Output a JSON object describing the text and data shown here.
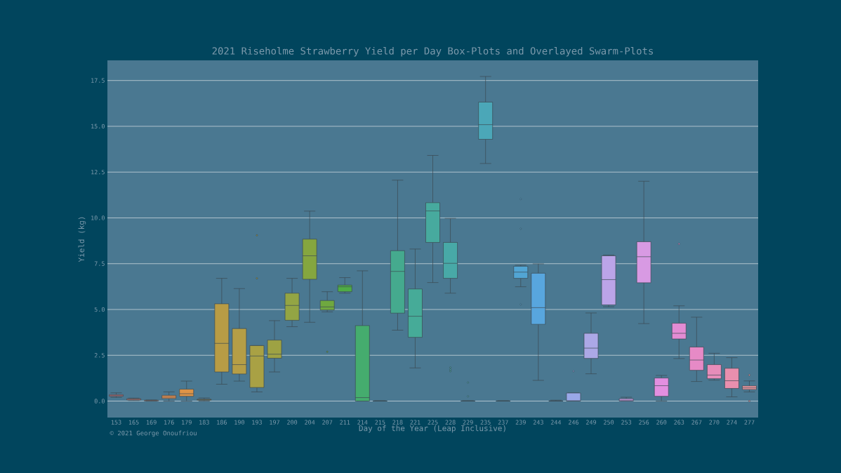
{
  "chart_data": {
    "type": "box",
    "title": "2021 Riseholme Strawberry Yield per Day Box-Plots and Overlayed Swarm-Plots",
    "xlabel": "Day of the Year (Leap Inclusive)",
    "ylabel": "Yield (kg)",
    "annotations": [
      "© 2021 George Onoufriou"
    ],
    "categories": [
      "153",
      "165",
      "169",
      "176",
      "179",
      "183",
      "186",
      "190",
      "193",
      "197",
      "200",
      "204",
      "207",
      "211",
      "214",
      "215",
      "218",
      "221",
      "225",
      "228",
      "229",
      "235",
      "237",
      "239",
      "243",
      "244",
      "246",
      "249",
      "250",
      "253",
      "256",
      "260",
      "263",
      "267",
      "270",
      "274",
      "277"
    ],
    "colors": [
      "#e8797c",
      "#e98577",
      "#e88a6a",
      "#e8904d",
      "#dd9447",
      "#c89b3f",
      "#b89c45",
      "#b59e46",
      "#a9a144",
      "#9ea243",
      "#93a544",
      "#85a63f",
      "#6fa83f",
      "#4fac45",
      "#45ac6e",
      "#45ab84",
      "#45aa8e",
      "#46ab98",
      "#47aa9e",
      "#48a9a7",
      "#4aa8b0",
      "#4ba7b8",
      "#4da6c2",
      "#52a5d4",
      "#58a6de",
      "#6fa4e6",
      "#99a8e8",
      "#aca8e6",
      "#bba4e8",
      "#cd9de5",
      "#d89ae3",
      "#e28fe0",
      "#e48cd4",
      "#e68ac6",
      "#e78dba",
      "#e98fae",
      "#e9979f"
    ],
    "boxes": [
      {
        "low": 0.2,
        "q1": 0.26,
        "median": 0.3,
        "q3": 0.35,
        "high": 0.45
      },
      {
        "low": 0.03,
        "q1": 0.06,
        "median": 0.1,
        "q3": 0.13,
        "high": 0.16
      },
      {
        "low": 0,
        "q1": 0.01,
        "median": 0.03,
        "q3": 0.05,
        "high": 0.06
      },
      {
        "low": 0,
        "q1": 0.14,
        "median": 0.22,
        "q3": 0.31,
        "high": 0.5
      },
      {
        "low": 0,
        "q1": 0.26,
        "median": 0.4,
        "q3": 0.65,
        "high": 1.09
      },
      {
        "low": 0,
        "q1": 0.05,
        "median": 0.08,
        "q3": 0.1,
        "high": 0.17
      },
      {
        "low": 0.92,
        "q1": 1.59,
        "median": 3.15,
        "q3": 5.31,
        "high": 6.7
      },
      {
        "low": 1.09,
        "q1": 1.48,
        "median": 1.99,
        "q3": 3.96,
        "high": 6.14
      },
      {
        "low": 0.5,
        "q1": 0.74,
        "median": 2.46,
        "q3": 3.03,
        "high": 3.03,
        "outliers": [
          9.05,
          6.7
        ]
      },
      {
        "low": 1.59,
        "q1": 2.34,
        "median": 2.56,
        "q3": 3.33,
        "high": 4.39
      },
      {
        "low": 4.06,
        "q1": 4.41,
        "median": 5.22,
        "q3": 5.89,
        "high": 6.7
      },
      {
        "low": 4.3,
        "q1": 6.65,
        "median": 7.93,
        "q3": 8.84,
        "high": 10.37
      },
      {
        "low": 4.87,
        "q1": 4.97,
        "median": 5.14,
        "q3": 5.49,
        "high": 5.97,
        "outliers": [
          2.69
        ]
      },
      {
        "low": 5.89,
        "q1": 5.97,
        "median": 6.24,
        "q3": 6.33,
        "high": 6.74
      },
      {
        "low": 0,
        "q1": 0,
        "median": 0.19,
        "q3": 4.12,
        "high": 7.11
      },
      {
        "low": 0,
        "q1": 0,
        "median": 0,
        "q3": 0.01,
        "high": 0.02
      },
      {
        "low": 3.87,
        "q1": 4.8,
        "median": 7.08,
        "q3": 8.21,
        "high": 12.06
      },
      {
        "low": 1.81,
        "q1": 3.48,
        "median": 4.63,
        "q3": 6.12,
        "high": 8.3
      },
      {
        "low": 6.47,
        "q1": 8.66,
        "median": 10.38,
        "q3": 10.83,
        "high": 13.41
      },
      {
        "low": 5.89,
        "q1": 6.7,
        "median": 7.52,
        "q3": 8.66,
        "high": 9.97,
        "outliers": [
          1.83,
          1.72,
          1.63
        ]
      },
      {
        "low": 0,
        "q1": 0,
        "median": 0,
        "q3": 0.01,
        "high": 0.02,
        "outliers": [
          1.01,
          0.26
        ]
      },
      {
        "low": 12.97,
        "q1": 14.29,
        "median": 15.09,
        "q3": 16.32,
        "high": 17.72
      },
      {
        "low": 0,
        "q1": 0,
        "median": 0,
        "q3": 0.01,
        "high": 0.02
      },
      {
        "low": 6.24,
        "q1": 6.7,
        "median": 7.04,
        "q3": 7.36,
        "high": 7.42,
        "outliers": [
          11.03,
          9.41,
          5.28
        ]
      },
      {
        "low": 1.13,
        "q1": 4.19,
        "median": 5.1,
        "q3": 6.98,
        "high": 7.49
      },
      {
        "low": 0,
        "q1": 0,
        "median": 0,
        "q3": 0.01,
        "high": 0.05
      },
      {
        "low": 0,
        "q1": 0,
        "median": 0.02,
        "q3": 0.44,
        "high": 0.44,
        "outliers": [
          1.63
        ]
      },
      {
        "low": 1.49,
        "q1": 2.33,
        "median": 2.89,
        "q3": 3.7,
        "high": 4.81
      },
      {
        "low": 5.15,
        "q1": 5.25,
        "median": 6.63,
        "q3": 7.93,
        "high": 7.97
      },
      {
        "low": 0,
        "q1": 0,
        "median": 0.05,
        "q3": 0.13,
        "high": 0.21
      },
      {
        "low": 4.23,
        "q1": 6.46,
        "median": 7.88,
        "q3": 8.7,
        "high": 12.0
      },
      {
        "low": 0,
        "q1": 0.26,
        "median": 0.84,
        "q3": 1.26,
        "high": 1.4
      },
      {
        "low": 2.32,
        "q1": 3.39,
        "median": 3.7,
        "q3": 4.25,
        "high": 5.2,
        "outliers": [
          8.58
        ]
      },
      {
        "low": 1.07,
        "q1": 1.68,
        "median": 2.24,
        "q3": 2.95,
        "high": 4.58
      },
      {
        "low": 1.14,
        "q1": 1.22,
        "median": 1.42,
        "q3": 1.99,
        "high": 2.61
      },
      {
        "low": 0.23,
        "q1": 0.69,
        "median": 1.11,
        "q3": 1.79,
        "high": 2.37
      },
      {
        "low": 0.5,
        "q1": 0.63,
        "median": 0.72,
        "q3": 0.83,
        "high": 1.1,
        "outliers": [
          1.42,
          0
        ]
      }
    ],
    "ylim": [
      -0.9,
      18.6
    ],
    "yticks": [
      {
        "value": 0,
        "label": "0.0"
      },
      2.5,
      {
        "value": 5,
        "label": "5.0"
      },
      7.5,
      {
        "value": 10,
        "label": "10.0"
      },
      12.5,
      {
        "value": 15,
        "label": "15.0"
      },
      17.5
    ],
    "grid": "y"
  }
}
